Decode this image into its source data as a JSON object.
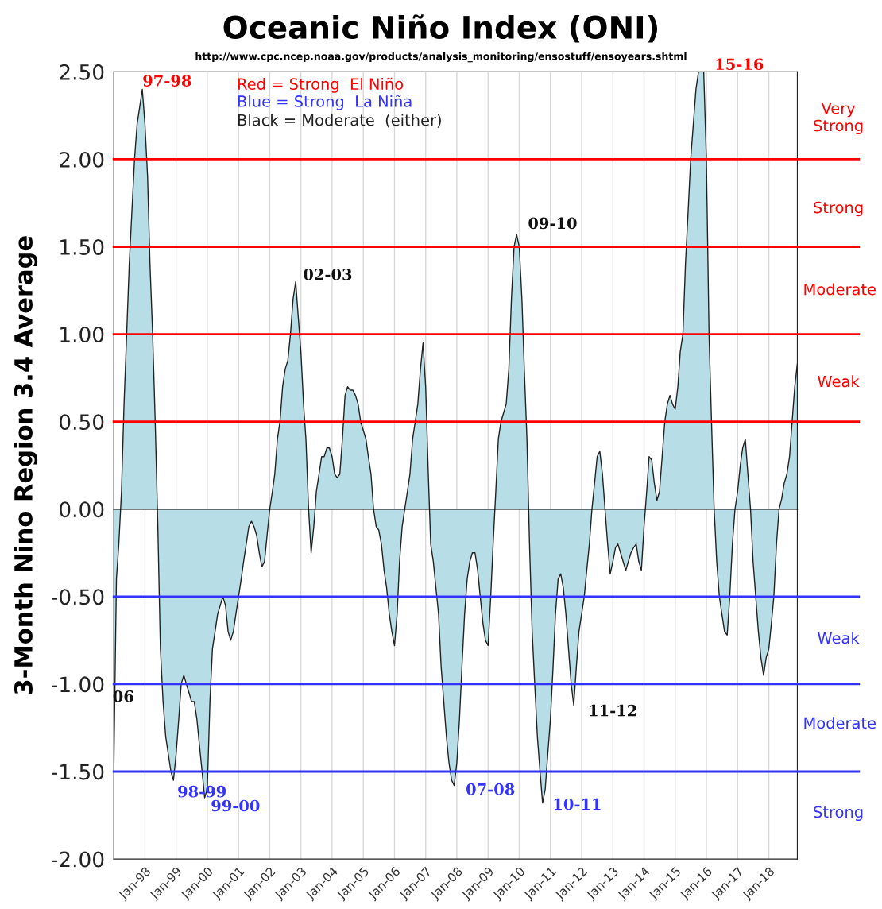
{
  "chart_data": {
    "type": "area",
    "title": "Oceanic Niño Index (ONI)",
    "subtitle": "http://www.cpc.ncep.noaa.gov/products/analysis_monitoring/ensostuff/ensoyears.shtml",
    "ylabel": "3-Month Nino Region 3.4 Average",
    "x": [
      "1997-01",
      "1997-02",
      "1997-03",
      "1997-04",
      "1997-05",
      "1997-06",
      "1997-07",
      "1997-08",
      "1997-09",
      "1997-10",
      "1997-11",
      "1997-12",
      "1998-01",
      "1998-02",
      "1998-03",
      "1998-04",
      "1998-05",
      "1998-06",
      "1998-07",
      "1998-08",
      "1998-09",
      "1998-10",
      "1998-11",
      "1998-12",
      "1999-01",
      "1999-02",
      "1999-03",
      "1999-04",
      "1999-05",
      "1999-06",
      "1999-07",
      "1999-08",
      "1999-09",
      "1999-10",
      "1999-11",
      "1999-12",
      "2000-01",
      "2000-02",
      "2000-03",
      "2000-04",
      "2000-05",
      "2000-06",
      "2000-07",
      "2000-08",
      "2000-09",
      "2000-10",
      "2000-11",
      "2000-12",
      "2001-01",
      "2001-02",
      "2001-03",
      "2001-04",
      "2001-05",
      "2001-06",
      "2001-07",
      "2001-08",
      "2001-09",
      "2001-10",
      "2001-11",
      "2001-12",
      "2002-01",
      "2002-02",
      "2002-03",
      "2002-04",
      "2002-05",
      "2002-06",
      "2002-07",
      "2002-08",
      "2002-09",
      "2002-10",
      "2002-11",
      "2002-12",
      "2003-01",
      "2003-02",
      "2003-03",
      "2003-04",
      "2003-05",
      "2003-06",
      "2003-07",
      "2003-08",
      "2003-09",
      "2003-10",
      "2003-11",
      "2003-12",
      "2004-01",
      "2004-02",
      "2004-03",
      "2004-04",
      "2004-05",
      "2004-06",
      "2004-07",
      "2004-08",
      "2004-09",
      "2004-10",
      "2004-11",
      "2004-12",
      "2005-01",
      "2005-02",
      "2005-03",
      "2005-04",
      "2005-05",
      "2005-06",
      "2005-07",
      "2005-08",
      "2005-09",
      "2005-10",
      "2005-11",
      "2005-12",
      "2006-01",
      "2006-02",
      "2006-03",
      "2006-04",
      "2006-05",
      "2006-06",
      "2006-07",
      "2006-08",
      "2006-09",
      "2006-10",
      "2006-11",
      "2006-12",
      "2007-01",
      "2007-02",
      "2007-03",
      "2007-04",
      "2007-05",
      "2007-06",
      "2007-07",
      "2007-08",
      "2007-09",
      "2007-10",
      "2007-11",
      "2007-12",
      "2008-01",
      "2008-02",
      "2008-03",
      "2008-04",
      "2008-05",
      "2008-06",
      "2008-07",
      "2008-08",
      "2008-09",
      "2008-10",
      "2008-11",
      "2008-12",
      "2009-01",
      "2009-02",
      "2009-03",
      "2009-04",
      "2009-05",
      "2009-06",
      "2009-07",
      "2009-08",
      "2009-09",
      "2009-10",
      "2009-11",
      "2009-12",
      "2010-01",
      "2010-02",
      "2010-03",
      "2010-04",
      "2010-05",
      "2010-06",
      "2010-07",
      "2010-08",
      "2010-09",
      "2010-10",
      "2010-11",
      "2010-12",
      "2011-01",
      "2011-02",
      "2011-03",
      "2011-04",
      "2011-05",
      "2011-06",
      "2011-07",
      "2011-08",
      "2011-09",
      "2011-10",
      "2011-11",
      "2011-12",
      "2012-01",
      "2012-02",
      "2012-03",
      "2012-04",
      "2012-05",
      "2012-06",
      "2012-07",
      "2012-08",
      "2012-09",
      "2012-10",
      "2012-11",
      "2012-12",
      "2013-01",
      "2013-02",
      "2013-03",
      "2013-04",
      "2013-05",
      "2013-06",
      "2013-07",
      "2013-08",
      "2013-09",
      "2013-10",
      "2013-11",
      "2013-12",
      "2014-01",
      "2014-02",
      "2014-03",
      "2014-04",
      "2014-05",
      "2014-06",
      "2014-07",
      "2014-08",
      "2014-09",
      "2014-10",
      "2014-11",
      "2014-12",
      "2015-01",
      "2015-02",
      "2015-03",
      "2015-04",
      "2015-05",
      "2015-06",
      "2015-07",
      "2015-08",
      "2015-09",
      "2015-10",
      "2015-11",
      "2015-12",
      "2016-01",
      "2016-02",
      "2016-03",
      "2016-04",
      "2016-05",
      "2016-06",
      "2016-07",
      "2016-08",
      "2016-09",
      "2016-10",
      "2016-11",
      "2016-12",
      "2017-01",
      "2017-02",
      "2017-03",
      "2017-04",
      "2017-05",
      "2017-06",
      "2017-07",
      "2017-08",
      "2017-09",
      "2017-10",
      "2017-11",
      "2017-12",
      "2018-01",
      "2018-02",
      "2018-03",
      "2018-04",
      "2018-05",
      "2018-06",
      "2018-07",
      "2018-08",
      "2018-09",
      "2018-10",
      "2018-11",
      "2018-12"
    ],
    "series": [
      {
        "color": "#b7dde6",
        "values": [
          -1.5,
          -0.4,
          -0.2,
          0.1,
          0.6,
          1.0,
          1.4,
          1.7,
          2.0,
          2.2,
          2.3,
          2.4,
          2.2,
          1.9,
          1.4,
          1.0,
          0.5,
          -0.1,
          -0.8,
          -1.1,
          -1.3,
          -1.4,
          -1.5,
          -1.55,
          -1.4,
          -1.2,
          -1.0,
          -0.95,
          -1.0,
          -1.05,
          -1.1,
          -1.1,
          -1.2,
          -1.35,
          -1.5,
          -1.65,
          -1.6,
          -1.1,
          -0.8,
          -0.7,
          -0.6,
          -0.55,
          -0.5,
          -0.55,
          -0.7,
          -0.75,
          -0.7,
          -0.6,
          -0.5,
          -0.4,
          -0.3,
          -0.2,
          -0.1,
          -0.07,
          -0.1,
          -0.15,
          -0.25,
          -0.33,
          -0.3,
          -0.15,
          0.0,
          0.1,
          0.2,
          0.4,
          0.5,
          0.7,
          0.8,
          0.85,
          1.0,
          1.2,
          1.3,
          1.1,
          0.9,
          0.6,
          0.4,
          0.0,
          -0.25,
          -0.1,
          0.1,
          0.2,
          0.3,
          0.3,
          0.35,
          0.35,
          0.3,
          0.2,
          0.18,
          0.2,
          0.4,
          0.65,
          0.7,
          0.68,
          0.68,
          0.65,
          0.6,
          0.5,
          0.45,
          0.4,
          0.3,
          0.2,
          0.0,
          -0.1,
          -0.12,
          -0.2,
          -0.35,
          -0.45,
          -0.6,
          -0.7,
          -0.78,
          -0.6,
          -0.3,
          -0.1,
          0.0,
          0.1,
          0.2,
          0.4,
          0.5,
          0.6,
          0.8,
          0.95,
          0.7,
          0.2,
          -0.2,
          -0.3,
          -0.45,
          -0.6,
          -0.9,
          -1.1,
          -1.3,
          -1.45,
          -1.55,
          -1.58,
          -1.45,
          -1.2,
          -0.9,
          -0.6,
          -0.4,
          -0.3,
          -0.25,
          -0.25,
          -0.35,
          -0.5,
          -0.65,
          -0.75,
          -0.78,
          -0.5,
          -0.2,
          0.1,
          0.4,
          0.5,
          0.55,
          0.6,
          0.8,
          1.2,
          1.5,
          1.57,
          1.5,
          1.2,
          0.8,
          0.4,
          -0.2,
          -0.7,
          -1.0,
          -1.3,
          -1.5,
          -1.68,
          -1.6,
          -1.4,
          -1.2,
          -0.9,
          -0.6,
          -0.4,
          -0.37,
          -0.45,
          -0.6,
          -0.8,
          -1.0,
          -1.12,
          -0.9,
          -0.7,
          -0.6,
          -0.5,
          -0.35,
          -0.2,
          0.0,
          0.15,
          0.3,
          0.33,
          0.2,
          0.0,
          -0.2,
          -0.37,
          -0.3,
          -0.22,
          -0.2,
          -0.25,
          -0.3,
          -0.35,
          -0.3,
          -0.25,
          -0.22,
          -0.2,
          -0.3,
          -0.35,
          -0.1,
          0.1,
          0.3,
          0.28,
          0.15,
          0.05,
          0.1,
          0.3,
          0.5,
          0.6,
          0.65,
          0.6,
          0.57,
          0.7,
          0.9,
          1.0,
          1.4,
          1.7,
          2.0,
          2.2,
          2.4,
          2.5,
          2.5,
          2.5,
          2.0,
          1.0,
          0.5,
          0.0,
          -0.3,
          -0.5,
          -0.6,
          -0.7,
          -0.72,
          -0.5,
          -0.2,
          0.0,
          0.1,
          0.25,
          0.35,
          0.4,
          0.2,
          0.0,
          -0.3,
          -0.5,
          -0.7,
          -0.85,
          -0.95,
          -0.85,
          -0.8,
          -0.65,
          -0.5,
          -0.2,
          0.0,
          0.06,
          0.15,
          0.2,
          0.3,
          0.5,
          0.7,
          0.83
        ]
      }
    ],
    "xlim": [
      "1997-01",
      "2018-12"
    ],
    "xticks": [
      {
        "value": "1997-01",
        "label": null
      },
      {
        "value": "1998-01",
        "label": "Jan-98"
      },
      {
        "value": "1999-01",
        "label": "Jan-99"
      },
      {
        "value": "2000-01",
        "label": "Jan-00"
      },
      {
        "value": "2001-01",
        "label": "Jan-01"
      },
      {
        "value": "2002-01",
        "label": "Jan-02"
      },
      {
        "value": "2003-01",
        "label": "Jan-03"
      },
      {
        "value": "2004-01",
        "label": "Jan-04"
      },
      {
        "value": "2005-01",
        "label": "Jan-05"
      },
      {
        "value": "2006-01",
        "label": "Jan-06"
      },
      {
        "value": "2007-01",
        "label": "Jan-07"
      },
      {
        "value": "2008-01",
        "label": "Jan-08"
      },
      {
        "value": "2009-01",
        "label": "Jan-09"
      },
      {
        "value": "2010-01",
        "label": "Jan-10"
      },
      {
        "value": "2011-01",
        "label": "Jan-11"
      },
      {
        "value": "2012-01",
        "label": "Jan-12"
      },
      {
        "value": "2013-01",
        "label": "Jan-13"
      },
      {
        "value": "2014-01",
        "label": "Jan-14"
      },
      {
        "value": "2015-01",
        "label": "Jan-15"
      },
      {
        "value": "2016-01",
        "label": "Jan-16"
      },
      {
        "value": "2017-01",
        "label": "Jan-17"
      },
      {
        "value": "2018-01",
        "label": "Jan-18"
      }
    ],
    "ylim": [
      -2.0,
      2.5
    ],
    "yticks": [
      {
        "value": -2.0,
        "label": "-2.00"
      },
      {
        "value": -1.5,
        "label": "-1.50"
      },
      {
        "value": -1.0,
        "label": "-1.00"
      },
      {
        "value": -0.5,
        "label": "-0.50"
      },
      {
        "value": 0.0,
        "label": "0.00"
      },
      {
        "value": 0.5,
        "label": "0.50"
      },
      {
        "value": 1.0,
        "label": "1.00"
      },
      {
        "value": 1.5,
        "label": "1.50"
      },
      {
        "value": 2.0,
        "label": "2.00"
      },
      {
        "value": 2.5,
        "label": "2.50"
      }
    ],
    "grid": "x",
    "ref_lines": [
      {
        "axis": "y",
        "value": 0.0,
        "color": "#000000"
      },
      {
        "axis": "y",
        "value": 0.5,
        "color": "#ff0000"
      },
      {
        "axis": "y",
        "value": 1.0,
        "color": "#ff0000"
      },
      {
        "axis": "y",
        "value": 1.5,
        "color": "#ff0000"
      },
      {
        "axis": "y",
        "value": 2.0,
        "color": "#ff0000"
      },
      {
        "axis": "y",
        "value": -0.5,
        "color": "#3333ff"
      },
      {
        "axis": "y",
        "value": -1.0,
        "color": "#3333ff"
      },
      {
        "axis": "y",
        "value": -1.5,
        "color": "#3333ff"
      }
    ],
    "annotations": [
      "Red = Strong  El Niño",
      "Blue = Strong  La Niña",
      "Black = Moderate  (either)",
      "97-98",
      "02-03",
      "09-10",
      "15-16",
      "06",
      "98-99",
      "99-00",
      "07-08",
      "10-11",
      "11-12",
      "Very\nStrong",
      "Strong",
      "Moderate",
      "Weak",
      "Weak",
      "Moderate",
      "Strong"
    ]
  }
}
